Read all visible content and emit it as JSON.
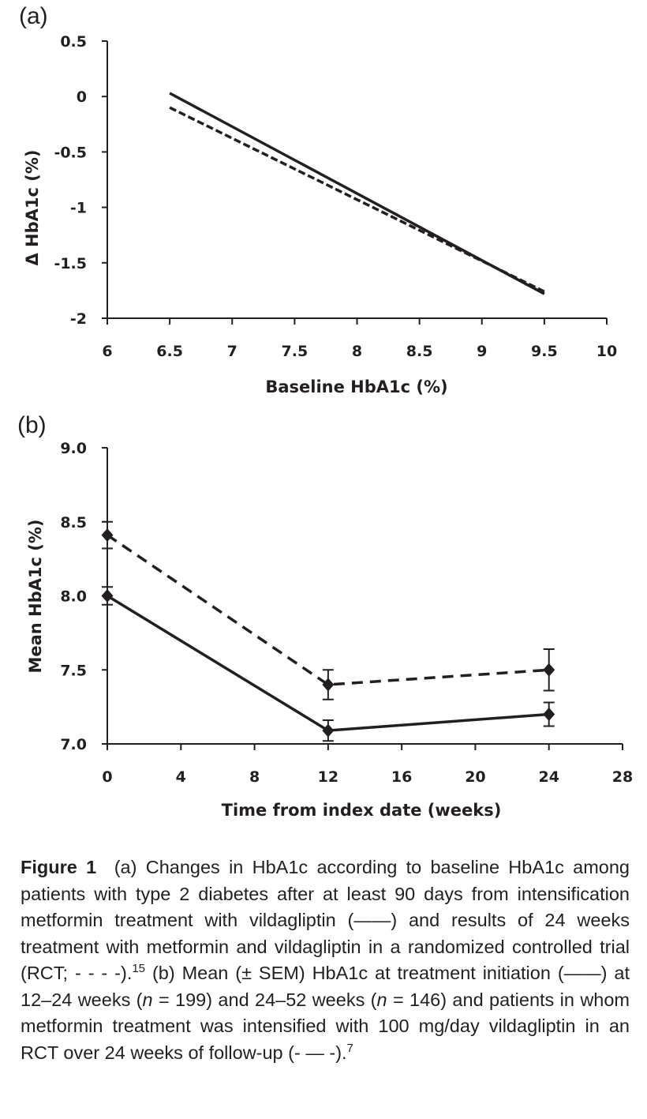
{
  "chart_data": [
    {
      "type": "line",
      "panel_label": "(a)",
      "xlabel": "Baseline HbA1c (%)",
      "ylabel": "Δ HbA1c (%)",
      "xlim": [
        6,
        10
      ],
      "ylim": [
        -2,
        0.5
      ],
      "x_ticks": [
        "6",
        "6.5",
        "7",
        "7.5",
        "8",
        "8.5",
        "9",
        "9.5",
        "10"
      ],
      "y_ticks": [
        "0.5",
        "0",
        "-0.5",
        "-1",
        "-1.5",
        "-2"
      ],
      "grid": false,
      "series": [
        {
          "style": "solid",
          "x": [
            6.5,
            9.5
          ],
          "y": [
            0.03,
            -1.78
          ]
        },
        {
          "style": "dashed",
          "x": [
            6.5,
            9.5
          ],
          "y": [
            -0.1,
            -1.76
          ]
        }
      ]
    },
    {
      "type": "line",
      "panel_label": "(b)",
      "xlabel": "Time from index date (weeks)",
      "ylabel": "Mean HbA1c (%)",
      "xlim": [
        0,
        28
      ],
      "ylim": [
        7.0,
        9.0
      ],
      "x_ticks": [
        "0",
        "4",
        "8",
        "12",
        "16",
        "20",
        "24",
        "28"
      ],
      "y_ticks": [
        "9.0",
        "8.5",
        "8.0",
        "7.5",
        "7.0"
      ],
      "grid": false,
      "series": [
        {
          "style": "solid",
          "marker": "diamond",
          "x": [
            0,
            12,
            24
          ],
          "y": [
            8.0,
            7.09,
            7.2
          ],
          "err": [
            0.06,
            0.07,
            0.08
          ]
        },
        {
          "style": "dashed",
          "marker": "diamond",
          "x": [
            0,
            12,
            24
          ],
          "y": [
            8.41,
            7.4,
            7.5
          ],
          "err": [
            0.09,
            0.1,
            0.14
          ]
        }
      ]
    }
  ],
  "caption": {
    "label": "Figure 1",
    "part1": "(a) Changes in HbA1c according to baseline HbA1c among patients with type 2 diabetes after at least 90 days from intensification metformin treatment with vildagliptin (——) and results of 24 weeks treatment with metformin and vildagliptin in a randomized controlled trial (RCT; - - - -).",
    "ref1": "15",
    "part2": "(b) Mean (± SEM) HbA1c at treatment initiation (——) at 12–24 weeks (",
    "n_symbol": "n",
    "part3": " = 199) and 24–52 weeks (",
    "n_symbol2": "n",
    "part4": " = 146) and patients in whom metformin treatment was intensified with 100 mg/day vildagliptin in an RCT over 24 weeks of follow-up (- — -).",
    "ref2": "7"
  }
}
